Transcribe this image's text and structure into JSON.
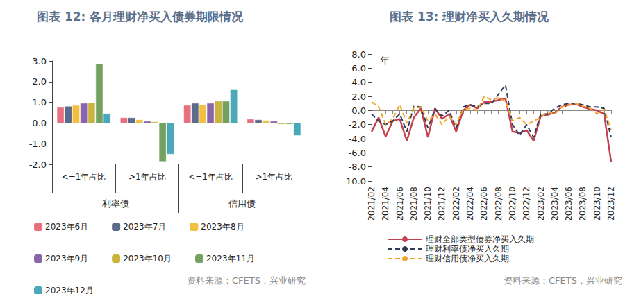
{
  "chart_data": [
    {
      "type": "bar",
      "title": "图表 12: 各月理财净买入债券期限情况",
      "source": "资料来源：CFETS，兴业研究",
      "categories": [
        "<=1年占比",
        ">1年占比",
        "<=1年占比",
        ">1年占比"
      ],
      "group_labels": [
        "利率债",
        "利率债",
        "信用债",
        "信用债"
      ],
      "series": [
        {
          "name": "2023年6月",
          "color": "#e8707e",
          "values": [
            0.75,
            0.25,
            0.85,
            0.18
          ]
        },
        {
          "name": "2023年7月",
          "color": "#5c6a8c",
          "values": [
            0.8,
            0.25,
            0.95,
            0.15
          ]
        },
        {
          "name": "2023年8月",
          "color": "#f2c040",
          "values": [
            0.85,
            0.15,
            0.88,
            0.12
          ]
        },
        {
          "name": "2023年9月",
          "color": "#8a64a8",
          "values": [
            0.95,
            0.08,
            0.95,
            0.08
          ]
        },
        {
          "name": "2023年10月",
          "color": "#c9b43c",
          "values": [
            0.98,
            0.05,
            1.05,
            -0.05
          ]
        },
        {
          "name": "2023年11月",
          "color": "#74a060",
          "values": [
            2.85,
            -1.85,
            1.05,
            -0.05
          ]
        },
        {
          "name": "2023年12月",
          "color": "#4aa8b8",
          "values": [
            0.45,
            -1.5,
            1.6,
            -0.6
          ]
        }
      ],
      "ylim": [
        -2,
        3
      ],
      "yticks": [
        {
          "value": -2,
          "label": "-2.0"
        },
        {
          "value": -1,
          "label": "-1.0"
        },
        {
          "value": 0,
          "label": "0.0"
        },
        {
          "value": 1,
          "label": "1.0"
        },
        {
          "value": 2,
          "label": "2.0"
        },
        {
          "value": 3,
          "label": "3.0"
        }
      ],
      "grid": false,
      "legend": "bottom"
    },
    {
      "type": "line",
      "title": "图表 13: 理财净买入久期情况",
      "source": "资料来源：CFETS，兴业研究",
      "y_label": "年",
      "categories": [
        "2021/02",
        null,
        "2021/04",
        null,
        "2021/06",
        null,
        "2021/08",
        null,
        "2021/10",
        null,
        "2021/12",
        null,
        "2022/02",
        null,
        "2022/04",
        null,
        "2022/06",
        null,
        "2022/08",
        null,
        "2022/10",
        null,
        "2022/12",
        null,
        "2023/02",
        null,
        "2023/04",
        null,
        "2023/06",
        null,
        "2023/08",
        null,
        "2023/10",
        null,
        "2023/12"
      ],
      "series": [
        {
          "name": "理财全部类型债券净买入久期",
          "color": "#c4424e",
          "line_style": "solid",
          "values": [
            -3.0,
            -1.0,
            -3.7,
            -1.5,
            -1.2,
            -4.3,
            -1.0,
            0.3,
            -3.8,
            0.3,
            -1.2,
            -0.5,
            -3.0,
            0.0,
            0.8,
            0.3,
            1.2,
            1.2,
            1.5,
            1.7,
            -3.0,
            -3.2,
            -2.8,
            -4.3,
            -0.8,
            -0.6,
            -0.3,
            0.5,
            0.8,
            0.9,
            0.5,
            0.2,
            0.0,
            -0.5,
            -7.3
          ]
        },
        {
          "name": "理财利率债净买入久期",
          "color": "#2e3c5a",
          "line_style": "dashed",
          "values": [
            -0.5,
            -1.5,
            -2.0,
            -1.5,
            -0.5,
            -3.0,
            0.6,
            0.5,
            -2.5,
            0.2,
            -0.8,
            0.0,
            -2.5,
            0.5,
            0.8,
            0.5,
            1.0,
            1.0,
            2.3,
            3.6,
            -2.0,
            -3.5,
            -2.0,
            -3.8,
            -0.5,
            -0.5,
            0.3,
            0.8,
            1.0,
            1.0,
            0.8,
            0.5,
            0.5,
            0.3,
            -3.8
          ]
        },
        {
          "name": "理财信用债净买入久期",
          "color": "#f2a42a",
          "line_style": "dashed",
          "values": [
            1.2,
            0.5,
            -2.0,
            -1.2,
            0.8,
            -1.8,
            0.3,
            0.5,
            -1.5,
            -0.5,
            -2.0,
            -0.8,
            -2.0,
            0.2,
            0.3,
            0.0,
            2.0,
            1.5,
            1.8,
            1.3,
            -1.5,
            -1.0,
            -2.0,
            -1.5,
            -1.0,
            -0.2,
            -0.5,
            0.5,
            0.8,
            1.0,
            0.6,
            0.3,
            -0.5,
            0.2,
            -2.8
          ]
        }
      ],
      "ylim": [
        -10,
        8
      ],
      "yticks": [
        {
          "value": -10,
          "label": "-10.0"
        },
        {
          "value": -8,
          "label": "-8.0"
        },
        {
          "value": -6,
          "label": "-6.0"
        },
        {
          "value": -4,
          "label": "-4.0"
        },
        {
          "value": -2,
          "label": "-2.0"
        },
        {
          "value": 0,
          "label": "0.0"
        },
        {
          "value": 2,
          "label": "2.0"
        },
        {
          "value": 4,
          "label": "4.0"
        },
        {
          "value": 6,
          "label": "6.0"
        },
        {
          "value": 8,
          "label": "8.0"
        }
      ],
      "grid": false,
      "legend": "bottom"
    }
  ]
}
